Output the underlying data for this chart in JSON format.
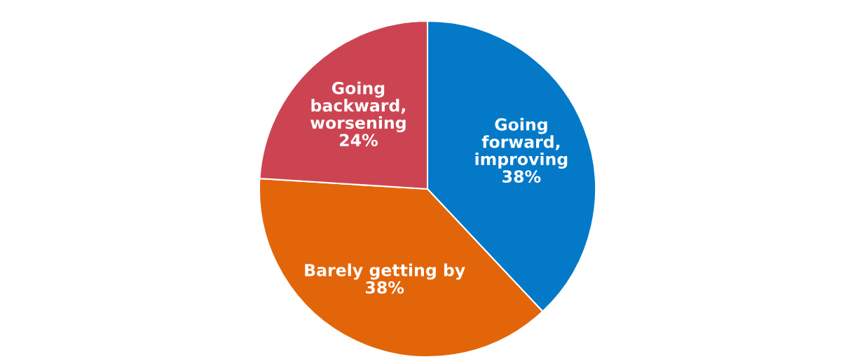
{
  "chart_data": {
    "type": "pie",
    "categories": [
      "Going\nforward,\nimproving",
      "Barely getting by",
      "Going\nbackward,\nworsening"
    ],
    "values": [
      38,
      38,
      24
    ],
    "value_labels": [
      "38%",
      "38%",
      "24%"
    ],
    "colors": [
      "#0379c8",
      "#e3650a",
      "#cc4452"
    ],
    "legend": false
  }
}
